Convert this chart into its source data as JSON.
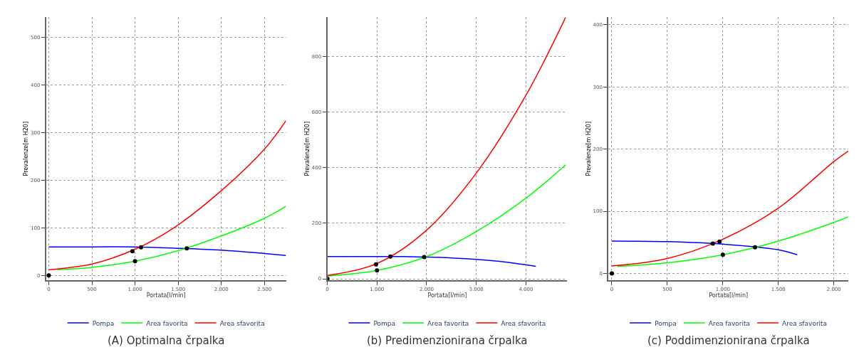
{
  "chart_data": [
    {
      "type": "line",
      "title": "(A) Optimalna črpalka",
      "xlabel": "Portata[l/min]",
      "ylabel": "Prevalenze[m H20]",
      "xlim": [
        -30,
        2750
      ],
      "ylim": [
        -10,
        542
      ],
      "xticks": [
        0,
        500,
        {
          "value": 1000,
          "label": "1.000"
        },
        {
          "value": 1500,
          "label": "1.500"
        },
        {
          "value": 2000,
          "label": "2.000"
        },
        {
          "value": 2500,
          "label": "2.500"
        }
      ],
      "yticks": [
        0,
        100,
        200,
        300,
        400,
        500
      ],
      "grid": true,
      "legend": "bottom",
      "marker": "none",
      "line_style": "solid",
      "series": [
        {
          "name": "Pompa",
          "color": "#0000ff",
          "x": [
            0,
            500,
            1000,
            1500,
            2000,
            2500,
            2750
          ],
          "values": [
            60,
            60,
            60,
            57,
            53,
            46,
            42
          ]
        },
        {
          "name": "Area favorita",
          "color": "#00ff00",
          "x": [
            100,
            500,
            1000,
            1500,
            2000,
            2500,
            2750
          ],
          "values": [
            12,
            17,
            30,
            52,
            83,
            120,
            145
          ]
        },
        {
          "name": "Area sfavorita",
          "color": "#ff0000",
          "x": [
            0,
            500,
            1000,
            1450,
            2000,
            2500,
            2750
          ],
          "values": [
            12,
            24,
            55,
            100,
            178,
            265,
            325
          ]
        },
        {
          "type": "scatter",
          "marker": "circle",
          "color": "#000000",
          "x": [
            0,
            970,
            1000,
            1070,
            1600
          ],
          "values": [
            0,
            51,
            30,
            59,
            57
          ]
        }
      ]
    },
    {
      "type": "line",
      "title": "(b) Predimenzionirana črpalka",
      "xlabel": "Portata[l/min]",
      "ylabel": "Prevalenze[m H20]",
      "xlim": [
        0,
        4830
      ],
      "ylim": [
        -5,
        940
      ],
      "xticks": [
        0,
        {
          "value": 1000,
          "label": "1.000"
        },
        {
          "value": 2000,
          "label": "2.000"
        },
        {
          "value": 3000,
          "label": "3.000"
        },
        {
          "value": 4000,
          "label": "4.000"
        }
      ],
      "yticks": [
        0,
        200,
        400,
        600,
        800
      ],
      "grid": true,
      "legend": "bottom",
      "marker": "none",
      "line_style": "solid",
      "series": [
        {
          "name": "Pompa",
          "color": "#0000ff",
          "x": [
            0,
            1000,
            1500,
            2000,
            2500,
            3000,
            3500,
            4200
          ],
          "values": [
            80,
            80,
            80,
            78,
            75,
            70,
            62,
            45
          ]
        },
        {
          "name": "Area favorita",
          "color": "#00ff00",
          "x": [
            0,
            1000,
            2000,
            3000,
            4000,
            4800
          ],
          "values": [
            10,
            30,
            80,
            170,
            290,
            410
          ]
        },
        {
          "name": "Area sfavorita",
          "color": "#ff0000",
          "x": [
            0,
            1000,
            2000,
            3000,
            4000,
            4800
          ],
          "values": [
            12,
            55,
            175,
            380,
            660,
            940
          ]
        },
        {
          "type": "scatter",
          "marker": "circle",
          "color": "#000000",
          "x": [
            0,
            980,
            1000,
            1270,
            1950
          ],
          "values": [
            0,
            52,
            30,
            80,
            78
          ]
        }
      ]
    },
    {
      "type": "line",
      "title": "(c) Poddimenzionirana črpalka",
      "xlabel": "Portata[l/min]",
      "ylabel": "Prevalenze[m H20]",
      "xlim": [
        -30,
        2130
      ],
      "ylim": [
        -11,
        412
      ],
      "xticks": [
        0,
        500,
        {
          "value": 1000,
          "label": "1.000"
        },
        {
          "value": 1500,
          "label": "1.500"
        },
        {
          "value": 2000,
          "label": "2.000"
        }
      ],
      "yticks": [
        0,
        100,
        200,
        300,
        400
      ],
      "grid": true,
      "legend": "bottom",
      "marker": "none",
      "line_style": "solid",
      "series": [
        {
          "name": "Pompa",
          "color": "#0000ff",
          "x": [
            0,
            500,
            1000,
            1500,
            1670
          ],
          "values": [
            52,
            51,
            47,
            38,
            30
          ]
        },
        {
          "name": "Area favorita",
          "color": "#00ff00",
          "x": [
            50,
            500,
            1000,
            1500,
            2000,
            2130
          ],
          "values": [
            11,
            17,
            30,
            52,
            82,
            91
          ]
        },
        {
          "name": "Area sfavorita",
          "color": "#ff0000",
          "x": [
            0,
            500,
            1000,
            1500,
            2000,
            2130
          ],
          "values": [
            12,
            24,
            55,
            105,
            180,
            197
          ]
        },
        {
          "type": "scatter",
          "marker": "circle",
          "color": "#000000",
          "x": [
            0,
            910,
            970,
            1000,
            1290
          ],
          "values": [
            0,
            48,
            51,
            30,
            42
          ]
        }
      ]
    }
  ]
}
